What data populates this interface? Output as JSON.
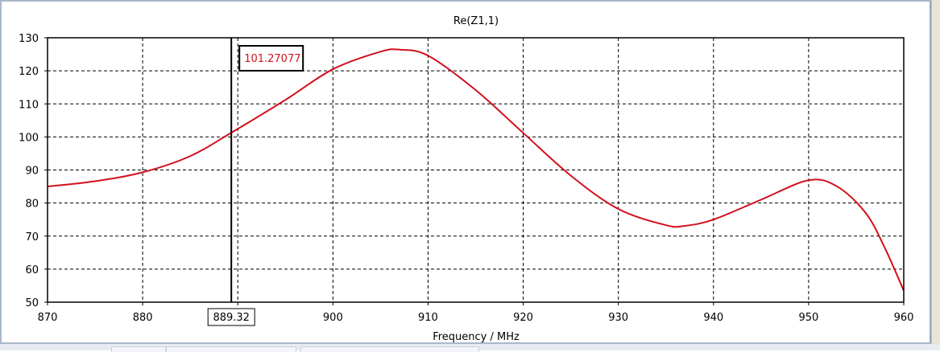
{
  "chart_data": {
    "type": "line",
    "title": "Re(Z1,1)",
    "xlabel": "Frequency / MHz",
    "ylabel": "",
    "xlim": [
      870,
      960
    ],
    "ylim": [
      50,
      130
    ],
    "xticks": [
      870,
      880,
      890,
      900,
      910,
      920,
      930,
      940,
      950,
      960
    ],
    "yticks": [
      50,
      60,
      70,
      80,
      90,
      100,
      110,
      120,
      130
    ],
    "grid": true,
    "series_color": "#d0101c",
    "series": [
      {
        "x": [
          870,
          875,
          880,
          885,
          889.32,
          895,
          900,
          905,
          907,
          910,
          915,
          920,
          925,
          930,
          935,
          937,
          940,
          945,
          950,
          953,
          956,
          958,
          960
        ],
        "y": [
          85,
          86.6,
          89.3,
          94.2,
          101.27,
          111.2,
          120.5,
          125.8,
          126.4,
          124.6,
          114.2,
          101.2,
          88.3,
          78.2,
          73.3,
          73.1,
          75,
          81,
          86.9,
          85,
          77,
          66.5,
          53.5
        ]
      }
    ],
    "marker": {
      "x_label": "889.32",
      "x": 889.32,
      "value_label": "101.27077",
      "value_color": "#d0101c"
    }
  }
}
